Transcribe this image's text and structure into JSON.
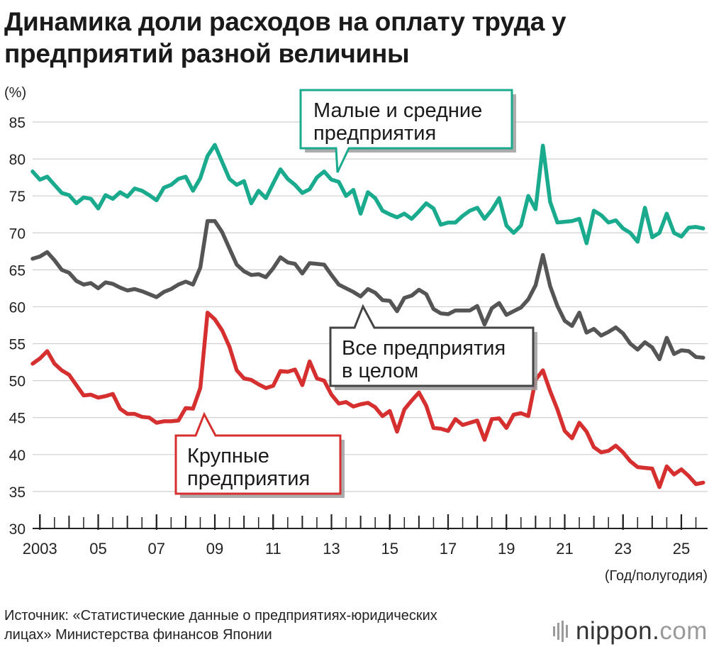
{
  "title_lines": [
    "Динамика доли расходов на оплату труда у",
    "предприятий разной величины"
  ],
  "source_lines": [
    "Источник: «Статистические данные о предприятиях-юридических",
    "лицах» Министерства финансов Японии"
  ],
  "logo": {
    "main": "nippon",
    "dot": ".",
    "suffix": "com"
  },
  "chart_data": {
    "type": "line",
    "title": "Динамика доли расходов на оплату труда у предприятий разной величины",
    "ylabel": "(%)",
    "xlabel": "(Год/полугодия)",
    "ylim": [
      30,
      85
    ],
    "yticks": [
      30,
      35,
      40,
      45,
      50,
      55,
      60,
      65,
      70,
      75,
      80,
      85
    ],
    "x_range": [
      2002.75,
      2025.9
    ],
    "x_tick_labels": [
      {
        "year": 2003,
        "label": "2003"
      },
      {
        "year": 2005,
        "label": "05"
      },
      {
        "year": 2007,
        "label": "07"
      },
      {
        "year": 2009,
        "label": "09"
      },
      {
        "year": 2011,
        "label": "11"
      },
      {
        "year": 2013,
        "label": "13"
      },
      {
        "year": 2015,
        "label": "15"
      },
      {
        "year": 2017,
        "label": "17"
      },
      {
        "year": 2019,
        "label": "19"
      },
      {
        "year": 2021,
        "label": "21"
      },
      {
        "year": 2023,
        "label": "23"
      },
      {
        "year": 2025,
        "label": "25"
      }
    ],
    "grid": true,
    "x_start": 2002.75,
    "x_step": 0.25,
    "series": [
      {
        "name": "Малые и средние предприятия",
        "label_lines": [
          "Малые и средние",
          "предприятия"
        ],
        "color": "#1aab8e",
        "values": [
          78.3,
          77.2,
          77.6,
          76.5,
          75.4,
          75.1,
          74.0,
          74.8,
          74.6,
          73.3,
          75.1,
          74.6,
          75.5,
          74.9,
          76.0,
          75.7,
          75.1,
          74.4,
          76.1,
          76.5,
          77.3,
          77.6,
          75.7,
          77.4,
          80.4,
          81.9,
          79.6,
          77.3,
          76.5,
          77.0,
          74.0,
          75.7,
          74.7,
          76.7,
          78.6,
          77.3,
          76.5,
          75.4,
          75.9,
          77.5,
          78.3,
          77.2,
          76.9,
          75.0,
          75.8,
          72.6,
          75.5,
          74.7,
          73.0,
          72.5,
          72.1,
          72.6,
          71.9,
          72.9,
          74.0,
          73.3,
          71.1,
          71.4,
          71.4,
          72.3,
          73.0,
          73.4,
          71.9,
          73.1,
          74.7,
          71.0,
          70.0,
          71.0,
          75.0,
          73.2,
          81.8,
          74.2,
          71.4,
          71.5,
          71.6,
          71.9,
          68.6,
          73.0,
          72.4,
          71.4,
          71.7,
          70.6,
          70.0,
          68.8,
          73.4,
          69.4,
          70.0,
          72.6,
          70.0,
          69.5,
          70.7,
          70.8,
          70.6
        ]
      },
      {
        "name": "Все предприятия в целом",
        "label_lines": [
          "Все предприятия",
          "в целом"
        ],
        "color": "#555555",
        "values": [
          66.5,
          66.8,
          67.4,
          66.3,
          65.0,
          64.6,
          63.5,
          63.0,
          63.2,
          62.5,
          63.3,
          63.1,
          62.6,
          62.2,
          62.4,
          62.1,
          61.7,
          61.3,
          62.0,
          62.4,
          63.0,
          63.4,
          63.0,
          65.3,
          71.6,
          71.6,
          70.1,
          67.9,
          65.7,
          64.8,
          64.3,
          64.4,
          64.0,
          65.2,
          66.7,
          66.0,
          65.8,
          64.5,
          65.9,
          65.8,
          65.7,
          64.3,
          63.0,
          62.5,
          62.0,
          61.4,
          62.4,
          61.9,
          60.9,
          60.8,
          59.4,
          61.2,
          61.5,
          62.3,
          61.7,
          59.7,
          59.1,
          59.0,
          59.5,
          59.5,
          59.5,
          60.1,
          57.6,
          59.8,
          60.5,
          58.9,
          59.4,
          59.9,
          61.0,
          62.9,
          67.0,
          62.8,
          60.1,
          58.1,
          57.4,
          59.2,
          56.5,
          57.0,
          56.1,
          56.6,
          57.2,
          56.4,
          55.0,
          54.2,
          55.2,
          54.5,
          52.9,
          55.8,
          53.6,
          54.1,
          54.0,
          53.2,
          53.1
        ]
      },
      {
        "name": "Крупные предприятия",
        "label_lines": [
          "Крупные",
          "предприятия"
        ],
        "color": "#d62f2f",
        "values": [
          52.3,
          53.0,
          54.0,
          52.3,
          51.4,
          50.8,
          49.4,
          48.0,
          48.1,
          47.7,
          47.9,
          48.2,
          46.2,
          45.5,
          45.5,
          45.1,
          45.0,
          44.3,
          44.5,
          44.5,
          44.6,
          46.3,
          46.2,
          49.0,
          59.2,
          58.3,
          56.8,
          54.6,
          51.4,
          50.3,
          50.1,
          49.5,
          49.0,
          49.3,
          51.3,
          51.2,
          51.5,
          49.4,
          52.6,
          50.3,
          50.0,
          48.1,
          46.9,
          47.1,
          46.5,
          46.8,
          47.0,
          46.4,
          45.2,
          45.9,
          43.1,
          46.1,
          47.3,
          48.4,
          46.6,
          43.6,
          43.5,
          43.2,
          44.8,
          44.0,
          44.3,
          44.6,
          42.0,
          44.8,
          44.9,
          43.6,
          45.4,
          45.6,
          45.2,
          50.1,
          51.4,
          48.6,
          46.1,
          43.2,
          42.2,
          44.3,
          43.1,
          41.0,
          40.3,
          40.5,
          41.2,
          40.3,
          39.1,
          38.3,
          38.2,
          38.1,
          35.6,
          38.4,
          37.3,
          38.0,
          37.1,
          36.0,
          36.2
        ]
      }
    ],
    "callouts": [
      {
        "series": 0,
        "color": "#1aab8e"
      },
      {
        "series": 1,
        "color": "#444444"
      },
      {
        "series": 2,
        "color": "#d62f2f"
      }
    ]
  }
}
